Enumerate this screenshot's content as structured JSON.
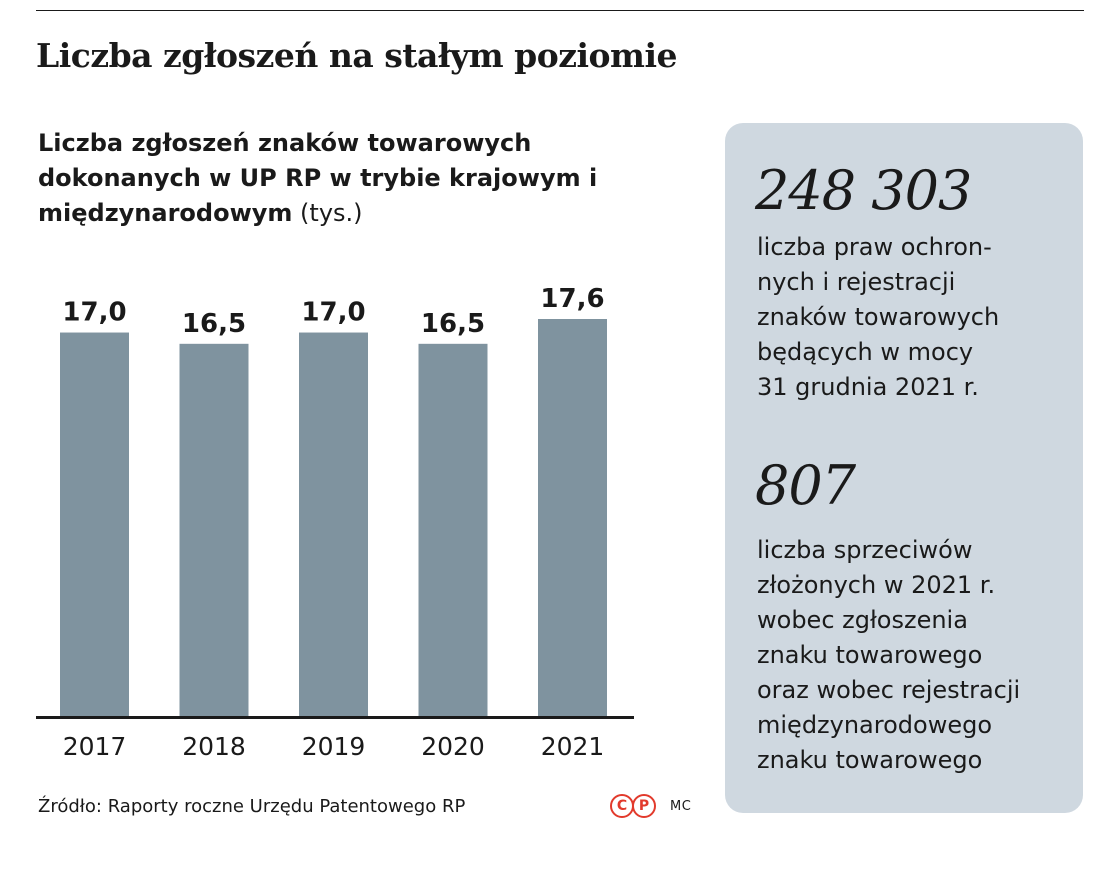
{
  "headline": "Liczba zgłoszeń na stałym poziomie",
  "chart_data": {
    "type": "bar",
    "title": "Liczba zgłoszeń znaków towarowych dokonanych w UP RP w trybie krajowym i międzynarodowym",
    "title_unit": "(tys.)",
    "categories": [
      "2017",
      "2018",
      "2019",
      "2020",
      "2021"
    ],
    "values": [
      17.0,
      16.5,
      17.0,
      16.5,
      17.6
    ],
    "value_labels": [
      "17,0",
      "16,5",
      "17,0",
      "16,5",
      "17,6"
    ],
    "ylim": [
      0,
      17.6
    ],
    "grid": false,
    "bar_color": "#7f939f"
  },
  "side_panel": {
    "stats": [
      {
        "number": "248 303",
        "description": "liczba praw ochron-\nnych i rejestracji\nznaków towarowych\nbędących w mocy\n31 grudnia 2021 r."
      },
      {
        "number": "807",
        "description": "liczba sprzeciwów\nzłożonych w 2021 r.\nwobec zgłoszenia\nznaku towarowego\noraz wobec rejestracji\nmiędzynarodowego\nznaku towarowego"
      }
    ]
  },
  "source": "Źródło: Raporty roczne Urzędu Patentowego RP",
  "copyright_icons": [
    "C",
    "P"
  ],
  "author": "MC"
}
